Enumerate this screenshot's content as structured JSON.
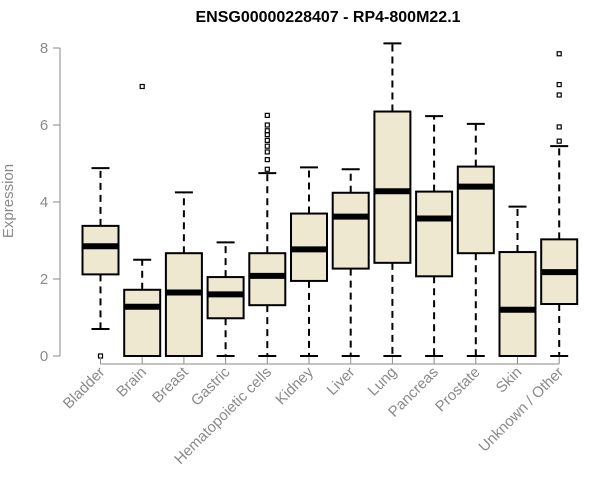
{
  "chart_data": {
    "type": "box",
    "title": "ENSG00000228407 - RP4-800M22.1",
    "xlabel": "",
    "ylabel": "Expression",
    "ylim": [
      0,
      8
    ],
    "yticks": [
      0,
      2,
      4,
      6,
      8
    ],
    "box_fill": "#efe8d0",
    "categories": [
      "Bladder",
      "Brain",
      "Breast",
      "Gastric",
      "Hematopoietic cells",
      "Kidney",
      "Liver",
      "Lung",
      "Pancreas",
      "Prostate",
      "Skin",
      "Unknown / Other"
    ],
    "boxes": [
      {
        "min": 0.7,
        "q1": 2.12,
        "median": 2.85,
        "q3": 3.38,
        "max": 4.88,
        "outliers": [
          0.0
        ]
      },
      {
        "min": 0.0,
        "q1": 0.0,
        "median": 1.28,
        "q3": 1.72,
        "max": 2.5,
        "outliers": [
          7.0
        ]
      },
      {
        "min": 0.0,
        "q1": 0.0,
        "median": 1.65,
        "q3": 2.67,
        "max": 4.25,
        "outliers": []
      },
      {
        "min": 0.0,
        "q1": 0.98,
        "median": 1.6,
        "q3": 2.05,
        "max": 2.95,
        "outliers": []
      },
      {
        "min": 0.0,
        "q1": 1.32,
        "median": 2.08,
        "q3": 2.67,
        "max": 4.75,
        "outliers": [
          4.85,
          5.1,
          5.3,
          5.45,
          5.6,
          5.75,
          5.85,
          6.0,
          6.25
        ]
      },
      {
        "min": 0.0,
        "q1": 1.95,
        "median": 2.77,
        "q3": 3.7,
        "max": 4.9,
        "outliers": []
      },
      {
        "min": 0.0,
        "q1": 2.27,
        "median": 3.62,
        "q3": 4.24,
        "max": 4.85,
        "outliers": []
      },
      {
        "min": 0.0,
        "q1": 2.42,
        "median": 4.28,
        "q3": 6.35,
        "max": 8.12,
        "outliers": []
      },
      {
        "min": 0.0,
        "q1": 2.07,
        "median": 3.57,
        "q3": 4.27,
        "max": 6.23,
        "outliers": []
      },
      {
        "min": 0.0,
        "q1": 2.67,
        "median": 4.4,
        "q3": 4.92,
        "max": 6.03,
        "outliers": []
      },
      {
        "min": 0.0,
        "q1": 0.0,
        "median": 1.2,
        "q3": 2.7,
        "max": 3.88,
        "outliers": []
      },
      {
        "min": 0.0,
        "q1": 1.35,
        "median": 2.18,
        "q3": 3.03,
        "max": 5.45,
        "outliers": [
          5.58,
          5.95,
          6.78,
          7.05,
          7.85
        ]
      }
    ]
  }
}
